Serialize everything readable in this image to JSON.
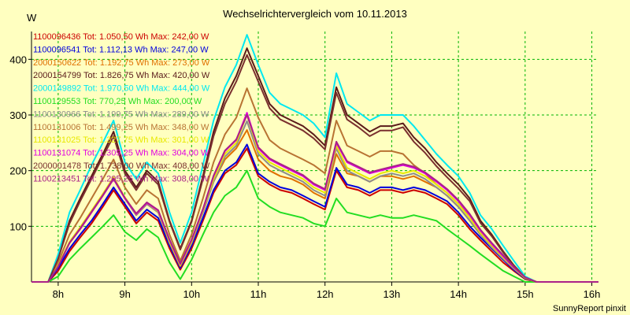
{
  "chart_data": {
    "type": "line",
    "title": "Wechselrichtervergleich vom 10.11.2013",
    "ylabel": "W",
    "credit": "SunnyReport pinxit",
    "xlim": [
      7.6,
      16.1
    ],
    "ylim": [
      0,
      450
    ],
    "grid": true,
    "legend_position": "top-left",
    "x_ticks": [
      {
        "v": 8,
        "label": "8h"
      },
      {
        "v": 9,
        "label": "9h"
      },
      {
        "v": 10,
        "label": "10h"
      },
      {
        "v": 11,
        "label": "11h"
      },
      {
        "v": 12,
        "label": "12h"
      },
      {
        "v": 13,
        "label": "13h"
      },
      {
        "v": 14,
        "label": "14h"
      },
      {
        "v": 15,
        "label": "15h"
      },
      {
        "v": 16,
        "label": "16h"
      }
    ],
    "y_ticks": [
      {
        "v": 100,
        "label": "100"
      },
      {
        "v": 200,
        "label": "200"
      },
      {
        "v": 300,
        "label": "300"
      },
      {
        "v": 400,
        "label": "400"
      }
    ],
    "x": [
      7.6,
      7.85,
      8.0,
      8.17,
      8.33,
      8.5,
      8.67,
      8.83,
      9.0,
      9.17,
      9.33,
      9.5,
      9.67,
      9.83,
      10.0,
      10.17,
      10.33,
      10.5,
      10.67,
      10.83,
      11.0,
      11.17,
      11.33,
      11.5,
      11.67,
      11.83,
      12.0,
      12.17,
      12.33,
      12.5,
      12.67,
      12.83,
      13.0,
      13.17,
      13.33,
      13.5,
      13.67,
      13.83,
      14.0,
      14.17,
      14.33,
      14.5,
      14.67,
      14.83,
      15.0,
      15.17,
      15.33,
      15.5,
      15.67,
      15.83,
      16.0,
      16.1
    ],
    "series": [
      {
        "name": "1100096436",
        "legend": "1100096436 Tot: 1.050,50 Wh Max: 242,00 W",
        "color": "#cc0000",
        "values": [
          0,
          0,
          20,
          55,
          80,
          105,
          135,
          165,
          135,
          105,
          125,
          110,
          60,
          22,
          60,
          110,
          160,
          195,
          210,
          240,
          190,
          175,
          165,
          160,
          150,
          140,
          130,
          200,
          170,
          165,
          155,
          165,
          165,
          160,
          165,
          160,
          150,
          140,
          120,
          95,
          75,
          55,
          35,
          20,
          5,
          0,
          0,
          0,
          0,
          0,
          0,
          0
        ]
      },
      {
        "name": "1100096541",
        "legend": "1100096541 Tot: 1.112,13 Wh Max: 247,00 W",
        "color": "#0000dd",
        "values": [
          0,
          0,
          25,
          60,
          85,
          110,
          140,
          170,
          140,
          110,
          130,
          115,
          65,
          25,
          65,
          115,
          165,
          200,
          215,
          247,
          195,
          180,
          170,
          165,
          155,
          145,
          135,
          205,
          175,
          170,
          160,
          170,
          170,
          165,
          170,
          165,
          155,
          145,
          125,
          100,
          80,
          60,
          40,
          22,
          6,
          0,
          0,
          0,
          0,
          0,
          0,
          0
        ]
      },
      {
        "name": "2000150622",
        "legend": "2000150622 Tot: 1.192,75 Wh Max: 273,00 W",
        "color": "#e07000",
        "values": [
          0,
          0,
          30,
          70,
          95,
          125,
          155,
          185,
          150,
          120,
          140,
          125,
          70,
          28,
          70,
          125,
          180,
          220,
          240,
          273,
          220,
          200,
          190,
          185,
          175,
          160,
          150,
          230,
          195,
          190,
          180,
          190,
          190,
          185,
          190,
          180,
          170,
          155,
          135,
          110,
          85,
          62,
          42,
          24,
          7,
          0,
          0,
          0,
          0,
          0,
          0,
          0
        ]
      },
      {
        "name": "2000154799",
        "legend": "2000154799 Tot: 1.826,75 Wh Max: 420,00 W",
        "color": "#5a1a1a",
        "values": [
          0,
          0,
          45,
          110,
          150,
          190,
          230,
          270,
          200,
          170,
          200,
          180,
          110,
          60,
          110,
          190,
          270,
          330,
          370,
          420,
          370,
          320,
          300,
          290,
          280,
          265,
          245,
          350,
          300,
          285,
          270,
          280,
          280,
          285,
          260,
          240,
          215,
          195,
          175,
          150,
          110,
          85,
          55,
          30,
          8,
          0,
          0,
          0,
          0,
          0,
          0,
          0
        ]
      },
      {
        "name": "2000149892",
        "legend": "2000149892 Tot: 1.970,50 Wh Max: 444,00 W",
        "color": "#00e8f0",
        "values": [
          0,
          0,
          50,
          125,
          165,
          210,
          250,
          290,
          215,
          185,
          215,
          195,
          125,
          70,
          125,
          210,
          290,
          350,
          390,
          444,
          390,
          340,
          320,
          310,
          300,
          285,
          260,
          375,
          320,
          305,
          290,
          300,
          300,
          300,
          280,
          255,
          230,
          210,
          190,
          160,
          120,
          95,
          65,
          38,
          10,
          0,
          0,
          0,
          0,
          0,
          0,
          0
        ]
      },
      {
        "name": "1100129553",
        "legend": "1100129553 Tot: 770,25 Wh Max: 200,00 W",
        "color": "#22dd22",
        "values": [
          0,
          0,
          10,
          40,
          60,
          80,
          100,
          120,
          90,
          75,
          95,
          80,
          35,
          5,
          40,
          85,
          125,
          155,
          170,
          200,
          150,
          135,
          125,
          120,
          115,
          105,
          100,
          150,
          125,
          120,
          115,
          120,
          115,
          115,
          120,
          115,
          110,
          95,
          80,
          65,
          50,
          35,
          20,
          10,
          0,
          0,
          0,
          0,
          0,
          0,
          0,
          0
        ]
      },
      {
        "name": "1100130966",
        "legend": "1100130966 Tot: 1.199,75 Wh Max: 289,00 W",
        "color": "#8c8c8c",
        "values": [
          0,
          0,
          30,
          70,
          95,
          125,
          155,
          185,
          150,
          120,
          140,
          125,
          70,
          30,
          70,
          125,
          180,
          225,
          245,
          289,
          230,
          210,
          200,
          190,
          180,
          165,
          155,
          240,
          200,
          190,
          180,
          190,
          195,
          190,
          195,
          185,
          170,
          155,
          135,
          110,
          85,
          62,
          42,
          24,
          7,
          0,
          0,
          0,
          0,
          0,
          0,
          0
        ]
      },
      {
        "name": "1100131006",
        "legend": "1100131006 Tot: 1.499,25 Wh Max: 348,00 W",
        "color": "#b87333",
        "values": [
          0,
          0,
          35,
          85,
          115,
          150,
          185,
          220,
          170,
          140,
          165,
          150,
          85,
          38,
          85,
          150,
          215,
          265,
          295,
          348,
          295,
          255,
          240,
          230,
          220,
          210,
          195,
          290,
          245,
          235,
          225,
          235,
          235,
          230,
          210,
          195,
          175,
          160,
          140,
          120,
          90,
          68,
          45,
          25,
          7,
          0,
          0,
          0,
          0,
          0,
          0,
          0
        ]
      },
      {
        "name": "1100131025",
        "legend": "1100131025 Tot: 1.327,75 Wh Max: 301,00 W",
        "color": "#e8e800",
        "values": [
          0,
          0,
          30,
          72,
          98,
          128,
          158,
          188,
          152,
          122,
          142,
          127,
          72,
          30,
          72,
          128,
          185,
          230,
          250,
          301,
          235,
          215,
          205,
          195,
          185,
          170,
          160,
          245,
          205,
          195,
          185,
          195,
          200,
          195,
          200,
          190,
          175,
          160,
          140,
          115,
          88,
          65,
          44,
          25,
          7,
          0,
          0,
          0,
          0,
          0,
          0,
          0
        ]
      },
      {
        "name": "1100131074",
        "legend": "1100131074 Tot: 1.309,25 Wh Max: 304,00 W",
        "color": "#e000e0",
        "values": [
          0,
          0,
          28,
          70,
          95,
          125,
          155,
          185,
          150,
          122,
          142,
          128,
          75,
          32,
          75,
          130,
          190,
          235,
          255,
          304,
          240,
          220,
          210,
          200,
          190,
          175,
          165,
          250,
          215,
          205,
          195,
          200,
          205,
          210,
          205,
          195,
          180,
          165,
          145,
          120,
          92,
          68,
          46,
          26,
          8,
          0,
          0,
          0,
          0,
          0,
          0,
          0
        ]
      },
      {
        "name": "2000001478",
        "legend": "2000001478 Tot: 1.738,00 Wh Max: 408,00 W",
        "color": "#7a2f2f",
        "values": [
          0,
          0,
          42,
          105,
          145,
          185,
          225,
          262,
          195,
          165,
          195,
          175,
          108,
          58,
          108,
          185,
          262,
          320,
          360,
          408,
          360,
          312,
          292,
          282,
          272,
          258,
          238,
          340,
          292,
          278,
          262,
          272,
          272,
          278,
          252,
          232,
          208,
          188,
          168,
          145,
          106,
          82,
          53,
          29,
          8,
          0,
          0,
          0,
          0,
          0,
          0,
          0
        ]
      },
      {
        "name": "1100213451",
        "legend": "1100213451 Tot: 1.205,25 Wh Max: 308,00 W",
        "color": "#aa2288",
        "values": [
          0,
          0,
          28,
          70,
          96,
          126,
          156,
          186,
          151,
          123,
          143,
          129,
          76,
          33,
          76,
          131,
          191,
          236,
          256,
          300,
          242,
          222,
          212,
          202,
          192,
          177,
          167,
          252,
          217,
          207,
          197,
          202,
          207,
          212,
          207,
          197,
          182,
          167,
          147,
          122,
          94,
          70,
          48,
          27,
          8,
          0,
          0,
          0,
          0,
          0,
          0,
          0
        ]
      }
    ]
  }
}
